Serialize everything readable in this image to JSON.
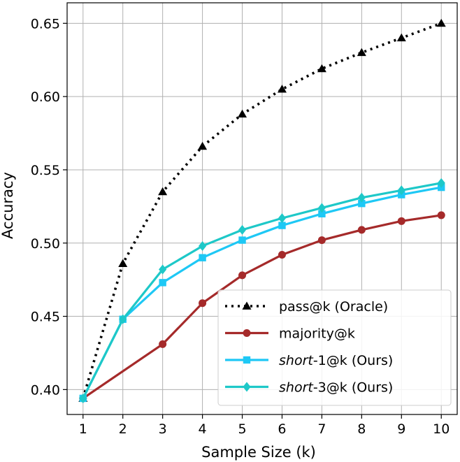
{
  "chart_data": {
    "type": "line",
    "title": "",
    "xlabel": "Sample Size (k)",
    "ylabel": "Accuracy",
    "x": [
      1,
      2,
      3,
      4,
      5,
      6,
      7,
      8,
      9,
      10
    ],
    "xlim": [
      0.6,
      10.4
    ],
    "ylim": [
      0.383,
      0.664
    ],
    "x_ticks": [
      1,
      2,
      3,
      4,
      5,
      6,
      7,
      8,
      9,
      10
    ],
    "y_ticks": [
      0.4,
      0.45,
      0.5,
      0.55,
      0.6,
      0.65
    ],
    "y_tick_labels": [
      "0.40",
      "0.45",
      "0.50",
      "0.55",
      "0.60",
      "0.65"
    ],
    "grid": true,
    "legend_position": "bottom-right",
    "series": [
      {
        "name": "pass@k (Oracle)",
        "legend": {
          "italic": "",
          "rest": "pass@k (Oracle)"
        },
        "color": "#000000",
        "dash": "dotted",
        "marker": "triangle",
        "x": [
          1,
          2,
          3,
          4,
          5,
          6,
          7,
          8,
          9,
          10
        ],
        "values": [
          0.394,
          0.486,
          0.535,
          0.566,
          0.588,
          0.605,
          0.619,
          0.63,
          0.64,
          0.65
        ]
      },
      {
        "name": "majority@k",
        "legend": {
          "italic": "",
          "rest": "majority@k"
        },
        "color": "#a52a2a",
        "dash": "solid",
        "marker": "circle",
        "x": [
          1,
          3,
          4,
          5,
          6,
          7,
          8,
          9,
          10
        ],
        "values": [
          0.394,
          0.431,
          0.459,
          0.478,
          0.492,
          0.502,
          0.509,
          0.515,
          0.519
        ]
      },
      {
        "name": "short-1@k  (Ours)",
        "legend": {
          "italic": "short",
          "rest": "-1@k  (Ours)"
        },
        "color": "#1ec8f5",
        "dash": "solid",
        "marker": "square",
        "x": [
          1,
          2,
          3,
          4,
          5,
          6,
          7,
          8,
          9,
          10
        ],
        "values": [
          0.394,
          0.448,
          0.473,
          0.49,
          0.502,
          0.512,
          0.52,
          0.527,
          0.533,
          0.538
        ]
      },
      {
        "name": "short-3@k  (Ours)",
        "legend": {
          "italic": "short",
          "rest": "-3@k  (Ours)"
        },
        "color": "#1ec8c8",
        "dash": "solid",
        "marker": "diamond",
        "x": [
          1,
          2,
          3,
          4,
          5,
          6,
          7,
          8,
          9,
          10
        ],
        "values": [
          0.394,
          0.448,
          0.482,
          0.498,
          0.509,
          0.517,
          0.524,
          0.531,
          0.536,
          0.541
        ]
      }
    ]
  }
}
